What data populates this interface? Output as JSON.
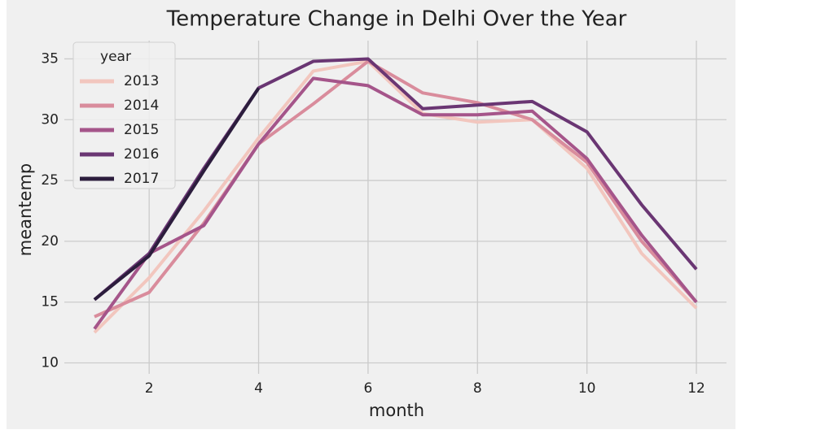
{
  "chart_data": {
    "type": "line",
    "title": "Temperature Change in Delhi Over the Year",
    "x_label": "month",
    "y_label": "meantemp",
    "legend_title": "year",
    "legend_position": "upper left",
    "grid": true,
    "x": [
      1,
      2,
      3,
      4,
      5,
      6,
      7,
      8,
      9,
      10,
      11,
      12
    ],
    "xlim": [
      0.45,
      12.55
    ],
    "xticks": [
      2,
      4,
      6,
      8,
      10,
      12
    ],
    "ylim": [
      9.1,
      36.5
    ],
    "yticks": [
      10,
      15,
      20,
      25,
      30,
      35
    ],
    "series": [
      {
        "name": "2013",
        "color": "#f2c6be",
        "values": [
          12.5,
          17,
          22.5,
          28.5,
          34,
          34.8,
          30.5,
          29.8,
          30,
          26,
          19,
          14.5
        ]
      },
      {
        "name": "2014",
        "color": "#d98c9c",
        "values": [
          13.8,
          15.8,
          21.5,
          28,
          31.3,
          34.8,
          32.2,
          31.4,
          30,
          26.5,
          20,
          15
        ]
      },
      {
        "name": "2015",
        "color": "#a5558a",
        "values": [
          12.8,
          19,
          21.3,
          28,
          33.4,
          32.8,
          30.4,
          30.4,
          30.7,
          26.8,
          20.5,
          15
        ]
      },
      {
        "name": "2016",
        "color": "#6a3673",
        "values": [
          15.2,
          19,
          26,
          32.6,
          34.8,
          35,
          30.9,
          31.2,
          31.5,
          29,
          23,
          17.7
        ]
      },
      {
        "name": "2017",
        "color": "#2c1d3d",
        "values": [
          15.2,
          18.8,
          25.8,
          32.6,
          null,
          null,
          null,
          null,
          null,
          null,
          null,
          null
        ]
      }
    ]
  }
}
